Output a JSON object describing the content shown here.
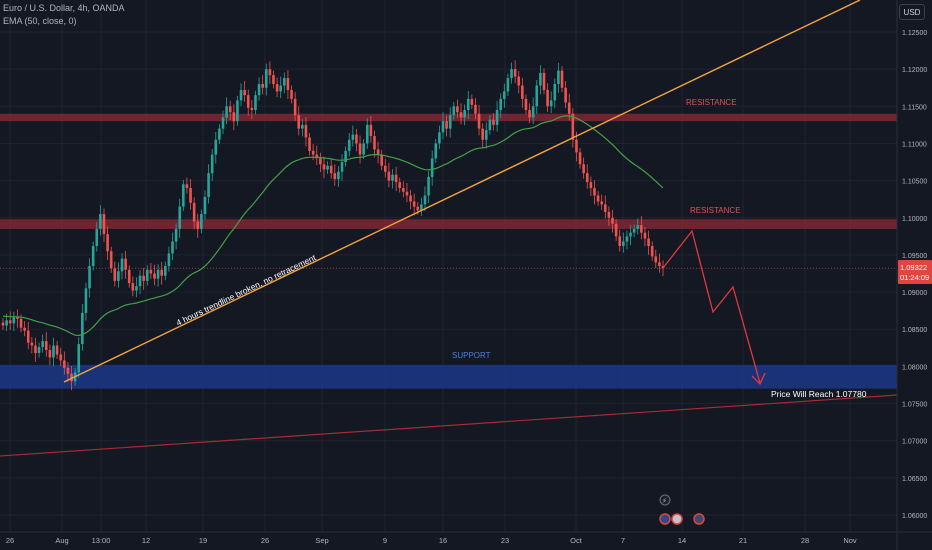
{
  "header": {
    "title": "Euro / U.S. Dollar, 4h, OANDA",
    "indicator": "EMA (50, close, 0)"
  },
  "currency": "USD",
  "price_badge": {
    "price": "1.09322",
    "countdown": "01:24:09"
  },
  "annotations": {
    "resistance_upper": "RESISTANCE",
    "resistance_lower": "RESISTANCE",
    "support": "SUPPORT",
    "trendline_note": "4 hours trendline broken, no retracement",
    "target": "Price Will Reach 1.07780"
  },
  "colors": {
    "background": "#141823",
    "up_candle": "#26a69a",
    "down_candle": "#ef5350",
    "ema": "#43a047",
    "trendline": "#f5a340",
    "resistance_zone": "#8e2a36",
    "support_zone": "#1c3a8c",
    "projection": "#e03a3a",
    "long_trendline": "#a52a34",
    "price_line": "#e05050"
  },
  "chart_data": {
    "type": "candlestick",
    "symbol": "EURUSD",
    "timeframe": "4h",
    "ylim": [
      1.0575,
      1.1275
    ],
    "yticks": [
      "1.12500",
      "1.12000",
      "1.11500",
      "1.11000",
      "1.10500",
      "1.10000",
      "1.09500",
      "1.09000",
      "1.08500",
      "1.08000",
      "1.07500",
      "1.07000",
      "1.06500",
      "1.06000"
    ],
    "xticks": [
      "26",
      "Aug",
      "13:00",
      "12",
      "19",
      "26",
      "Sep",
      "9",
      "16",
      "23",
      "Oct",
      "7",
      "14",
      "21",
      "28",
      "Nov"
    ],
    "closes": [
      1.0855,
      1.0862,
      1.0858,
      1.0866,
      1.0864,
      1.0852,
      1.0848,
      1.0832,
      1.0828,
      1.0818,
      1.0826,
      1.0834,
      1.0822,
      1.0812,
      1.0828,
      1.0816,
      1.0808,
      1.0798,
      1.079,
      1.078,
      1.0792,
      1.083,
      1.0872,
      1.0905,
      1.0935,
      1.0962,
      1.0985,
      1.1005,
      1.0978,
      1.0955,
      1.0932,
      1.0915,
      1.0928,
      1.0945,
      1.093,
      1.0912,
      1.0902,
      1.0908,
      1.0922,
      1.0915,
      1.093,
      1.0925,
      1.0918,
      1.093,
      1.0922,
      1.0935,
      1.0952,
      1.0968,
      1.0985,
      1.1015,
      1.1045,
      1.104,
      1.102,
      1.0995,
      1.0985,
      1.1005,
      1.1028,
      1.106,
      1.1085,
      1.1105,
      1.112,
      1.1135,
      1.115,
      1.1142,
      1.113,
      1.1158,
      1.1172,
      1.1165,
      1.1148,
      1.1145,
      1.1165,
      1.118,
      1.1175,
      1.12,
      1.1192,
      1.118,
      1.117,
      1.1178,
      1.1188,
      1.1172,
      1.116,
      1.1138,
      1.112,
      1.1125,
      1.1108,
      1.109,
      1.1085,
      1.108,
      1.1072,
      1.1065,
      1.107,
      1.106,
      1.1052,
      1.1062,
      1.1075,
      1.109,
      1.1105,
      1.1112,
      1.11,
      1.1085,
      1.11,
      1.1125,
      1.111,
      1.1092,
      1.1085,
      1.107,
      1.1062,
      1.105,
      1.1058,
      1.1048,
      1.104,
      1.1035,
      1.103,
      1.1022,
      1.1015,
      1.101,
      1.1018,
      1.103,
      1.1055,
      1.108,
      1.11,
      1.1115,
      1.113,
      1.112,
      1.1138,
      1.115,
      1.1142,
      1.1135,
      1.1145,
      1.116,
      1.1152,
      1.114,
      1.112,
      1.1105,
      1.1118,
      1.1132,
      1.1125,
      1.1145,
      1.116,
      1.117,
      1.1188,
      1.12,
      1.119,
      1.1178,
      1.116,
      1.1145,
      1.1135,
      1.115,
      1.1178,
      1.1195,
      1.1172,
      1.115,
      1.1158,
      1.118,
      1.1198,
      1.1175,
      1.1155,
      1.114,
      1.1105,
      1.1088,
      1.1072,
      1.106,
      1.1048,
      1.104,
      1.103,
      1.1022,
      1.1018,
      1.1008,
      1.1,
      1.0992,
      1.0975,
      1.0962,
      1.0968,
      1.0975,
      1.098,
      1.0985,
      1.099,
      1.098,
      1.0972,
      1.0962,
      1.0948,
      1.094,
      1.0935,
      1.0932
    ],
    "ema50_endpoints": [
      1.0868,
      1.101
    ],
    "zones": [
      {
        "label": "RESISTANCE",
        "low": 1.113,
        "high": 1.114
      },
      {
        "label": "RESISTANCE",
        "low": 1.0985,
        "high": 1.0998
      },
      {
        "label": "SUPPORT",
        "low": 1.077,
        "high": 1.0802
      }
    ],
    "current_price": 1.09322,
    "target": 1.0778
  }
}
